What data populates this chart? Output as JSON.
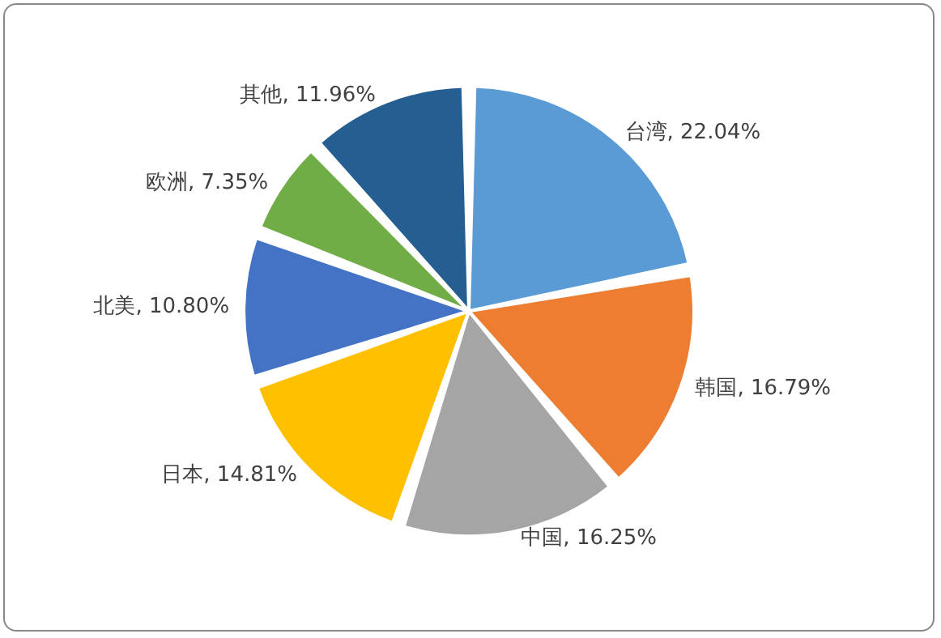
{
  "chart_data": {
    "type": "pie",
    "categories": [
      "台湾",
      "韩国",
      "中国",
      "日本",
      "北美",
      "欧洲",
      "其他"
    ],
    "values": [
      22.04,
      16.79,
      16.25,
      14.81,
      10.8,
      7.35,
      11.96
    ],
    "colors": [
      "#5b9bd5",
      "#ed7d31",
      "#a5a5a5",
      "#ffc000",
      "#4472c4",
      "#70ad47",
      "#255e91"
    ],
    "value_labels": [
      ", 22.04%",
      ", 16.79%",
      ", 16.25%",
      ", 14.81%",
      ", 10.80%",
      ", 7.35%",
      ", 11.96%"
    ],
    "legend": false
  }
}
